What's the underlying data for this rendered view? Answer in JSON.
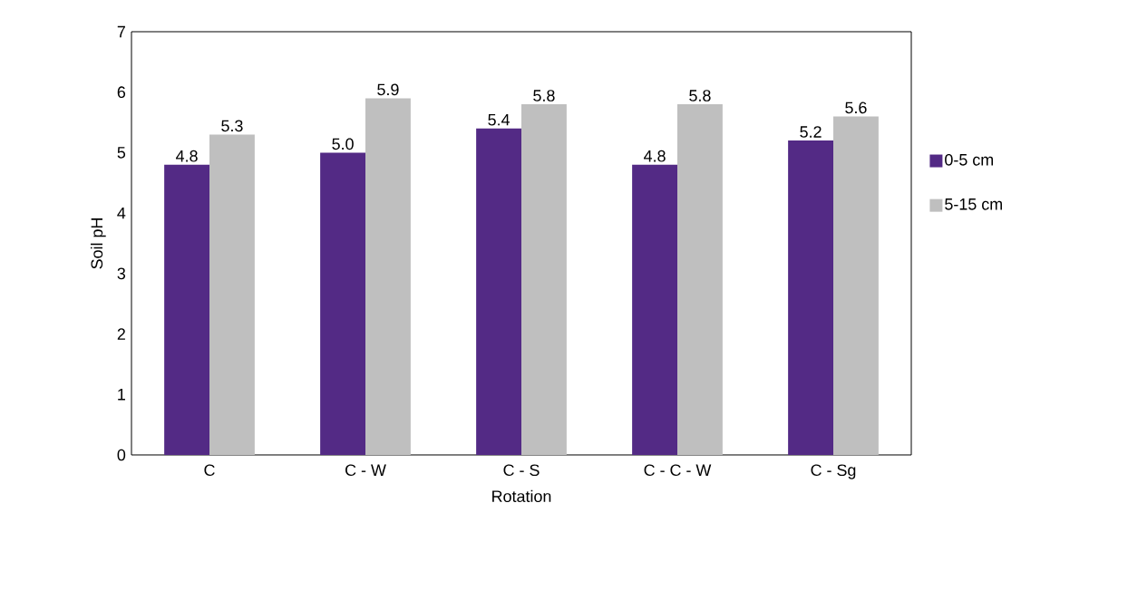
{
  "chart_data": {
    "type": "bar",
    "xlabel": "Rotation",
    "ylabel": "Soil pH",
    "categories": [
      "C",
      "C - W",
      "C - S",
      "C - C - W",
      "C - Sg"
    ],
    "series": [
      {
        "name": "0-5 cm",
        "color": "#532a85",
        "values": [
          4.8,
          5.0,
          5.4,
          4.8,
          5.2
        ],
        "value_labels": [
          "4.8",
          "5.0",
          "5.4",
          "4.8",
          "5.2"
        ]
      },
      {
        "name": "5-15 cm",
        "color": "#bfbfbf",
        "values": [
          5.3,
          5.9,
          5.8,
          5.8,
          5.6
        ],
        "value_labels": [
          "5.3",
          "5.9",
          "5.8",
          "5.8",
          "5.6"
        ]
      }
    ],
    "ylim": [
      0,
      7
    ],
    "yticks": [
      0,
      1,
      2,
      3,
      4,
      5,
      6,
      7
    ],
    "legend": "right"
  }
}
